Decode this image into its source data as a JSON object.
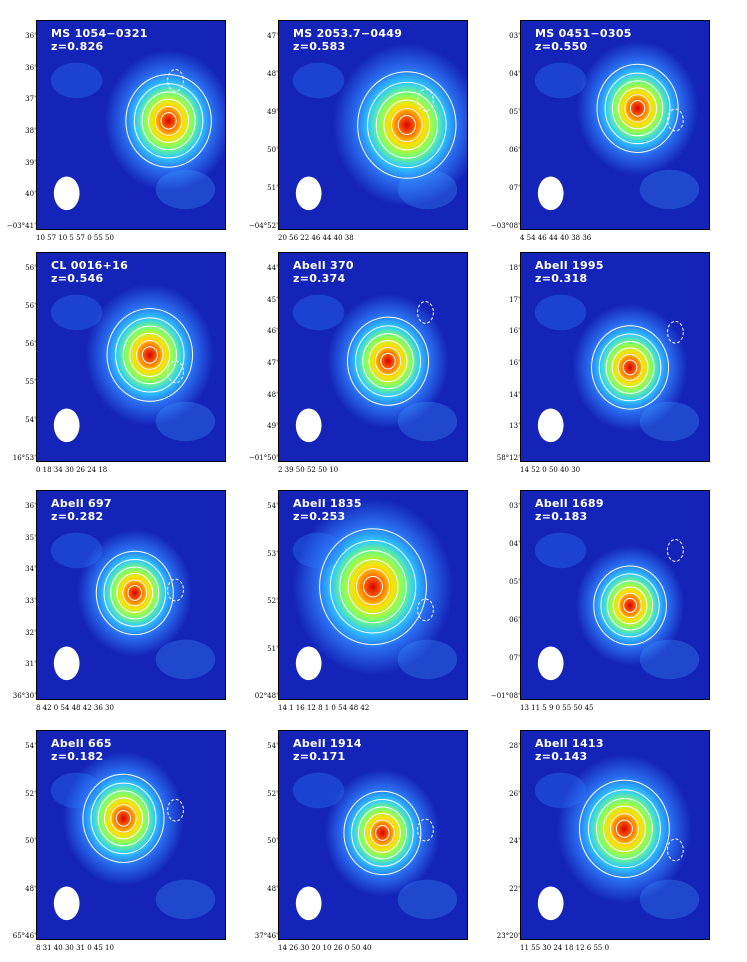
{
  "panels": [
    {
      "name": "MS 1054−0321",
      "z": "z=0.826",
      "yticks": [
        "36'",
        "36'",
        "37'",
        "38'",
        "39'",
        "40'",
        "−03°41'"
      ],
      "xticks": "10 57 10    5    57 0    55    50"
    },
    {
      "name": "MS 2053.7−0449",
      "z": "z=0.583",
      "yticks": [
        "47'",
        "48'",
        "49'",
        "50'",
        "51'",
        "−04°52'"
      ],
      "xticks": "20 56 22    46    44    40    38"
    },
    {
      "name": "MS 0451−0305",
      "z": "z=0.550",
      "yticks": [
        "03'",
        "04'",
        "05'",
        "06'",
        "07'",
        "−03°08'"
      ],
      "xticks": "4 54 46    44    40    38    36"
    },
    {
      "name": "CL 0016+16",
      "z": "z=0.546",
      "yticks": [
        "56'",
        "56'",
        "56'",
        "55'",
        "54'",
        "16°53'"
      ],
      "xticks": "0 18 34    30    26    24    18"
    },
    {
      "name": "Abell 370",
      "z": "z=0.374",
      "yticks": [
        "44'",
        "45'",
        "46'",
        "47'",
        "48'",
        "49'",
        "−01°50'"
      ],
      "xticks": "2 39 50    52    50    10"
    },
    {
      "name": "Abell 1995",
      "z": "z=0.318",
      "yticks": [
        "18'",
        "17'",
        "16'",
        "16'",
        "14'",
        "13'",
        "58°12'"
      ],
      "xticks": "14 52 0    50    40    30"
    },
    {
      "name": "Abell 697",
      "z": "z=0.282",
      "yticks": [
        "36'",
        "35'",
        "34'",
        "33'",
        "32'",
        "31'",
        "36°30'"
      ],
      "xticks": "8 42 0   54    48    42    36    30"
    },
    {
      "name": "Abell 1835",
      "z": "z=0.253",
      "yticks": [
        "54'",
        "53'",
        "52'",
        "51'",
        "02°48'"
      ],
      "xticks": "14 1 16  12    8  1 0   54    48    42"
    },
    {
      "name": "Abell 1689",
      "z": "z=0.183",
      "yticks": [
        "03'",
        "04'",
        "05'",
        "06'",
        "07'",
        "−01°08'"
      ],
      "xticks": "13 11 5    9 0    55    50    45"
    },
    {
      "name": "Abell 665",
      "z": "z=0.182",
      "yticks": [
        "54'",
        "52'",
        "50'",
        "48'",
        "65°46'"
      ],
      "xticks": "8 31 40    30    31 0    45    10"
    },
    {
      "name": "Abell 1914",
      "z": "z=0.171",
      "yticks": [
        "54'",
        "52'",
        "50'",
        "48'",
        "37°46'"
      ],
      "xticks": "14 26 30    20    10    26 0    50    40"
    },
    {
      "name": "Abell 1413",
      "z": "z=0.143",
      "yticks": [
        "28'",
        "26'",
        "24'",
        "22'",
        "23°20'"
      ],
      "xticks": "11 55 30  24    18    12    6    55 0"
    }
  ]
}
